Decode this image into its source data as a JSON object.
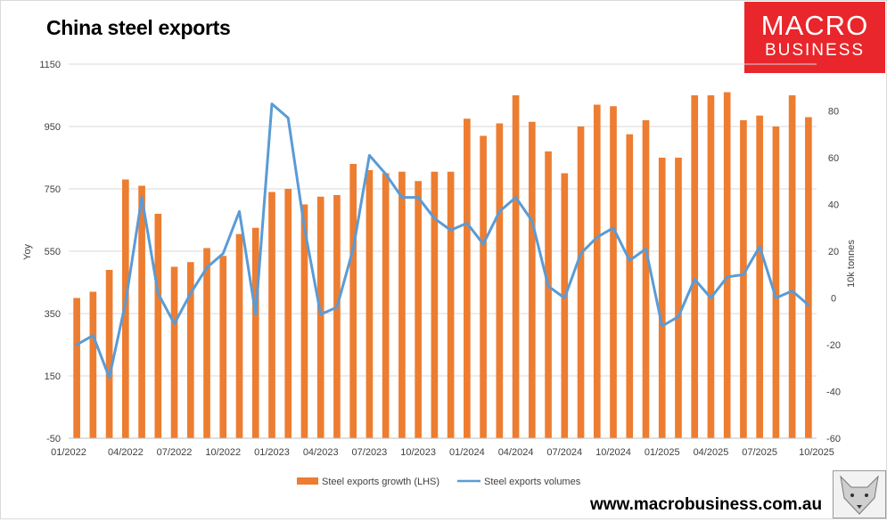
{
  "header": {
    "title": "China steel exports"
  },
  "logo": {
    "line1": "MACRO",
    "line2": "BUSINESS"
  },
  "footer": {
    "website": "www.macrobusiness.com.au"
  },
  "colors": {
    "bar": "#ed7d31",
    "line": "#5b9bd5",
    "logo_bg": "#e8262b"
  },
  "chart_data": {
    "type": "bar+line",
    "title": "China steel exports",
    "ylabel_left": "Yoy",
    "ylabel_right": "10k tonnes",
    "ylim_left": [
      -50,
      1150
    ],
    "ylim_right": [
      -60,
      100
    ],
    "left_ticks": [
      "1150",
      "950",
      "750",
      "550",
      "350",
      "150",
      "-50"
    ],
    "right_ticks": [
      "80",
      "60",
      "40",
      "20",
      "0",
      "-20",
      "-40",
      "-60"
    ],
    "x_tick_labels": [
      "01/2022",
      "04/2022",
      "07/2022",
      "10/2022",
      "01/2023",
      "04/2023",
      "07/2023",
      "10/2023",
      "01/2024",
      "04/2024",
      "07/2024",
      "10/2024",
      "01/2025",
      "04/2025",
      "07/2025",
      "10/2025"
    ],
    "categories": [
      "01/2022",
      "02/2022",
      "03/2022",
      "04/2022",
      "05/2022",
      "06/2022",
      "07/2022",
      "08/2022",
      "09/2022",
      "10/2022",
      "11/2022",
      "12/2022",
      "01/2023",
      "02/2023",
      "03/2023",
      "04/2023",
      "05/2023",
      "06/2023",
      "07/2023",
      "08/2023",
      "09/2023",
      "10/2023",
      "11/2023",
      "12/2023",
      "01/2024",
      "02/2024",
      "03/2024",
      "04/2024",
      "05/2024",
      "06/2024",
      "07/2024",
      "08/2024",
      "09/2024",
      "10/2024",
      "11/2024",
      "12/2024",
      "01/2025",
      "02/2025",
      "03/2025",
      "04/2025",
      "05/2025",
      "06/2025",
      "07/2025",
      "08/2025",
      "09/2025",
      "10/2025"
    ],
    "series": [
      {
        "name": "Steel exports growth (LHS)",
        "type": "bar",
        "axis": "left",
        "values": [
          400,
          420,
          490,
          780,
          760,
          670,
          500,
          515,
          560,
          535,
          605,
          625,
          740,
          750,
          700,
          725,
          730,
          830,
          810,
          800,
          805,
          775,
          805,
          805,
          975,
          920,
          960,
          1050,
          965,
          870,
          800,
          950,
          1020,
          1015,
          925,
          970,
          850,
          850,
          1050,
          1050,
          1060,
          970,
          985,
          950,
          1050,
          980
        ]
      },
      {
        "name": "Steel exports volumes",
        "type": "line",
        "axis": "right",
        "values": [
          -20,
          -16,
          -34,
          -2,
          43,
          2,
          -11,
          2,
          13,
          19,
          37,
          -7,
          83,
          77,
          30,
          -7,
          -4,
          21,
          61,
          53,
          43,
          43,
          34,
          29,
          32,
          23,
          37,
          43,
          33,
          5,
          0,
          19,
          26,
          30,
          16,
          21,
          -12,
          -8,
          8,
          0,
          9,
          10,
          22,
          0,
          3,
          -3
        ]
      }
    ],
    "legend": [
      "Steel exports growth (LHS)",
      "Steel exports volumes"
    ],
    "legend_position": "bottom",
    "grid": true
  }
}
